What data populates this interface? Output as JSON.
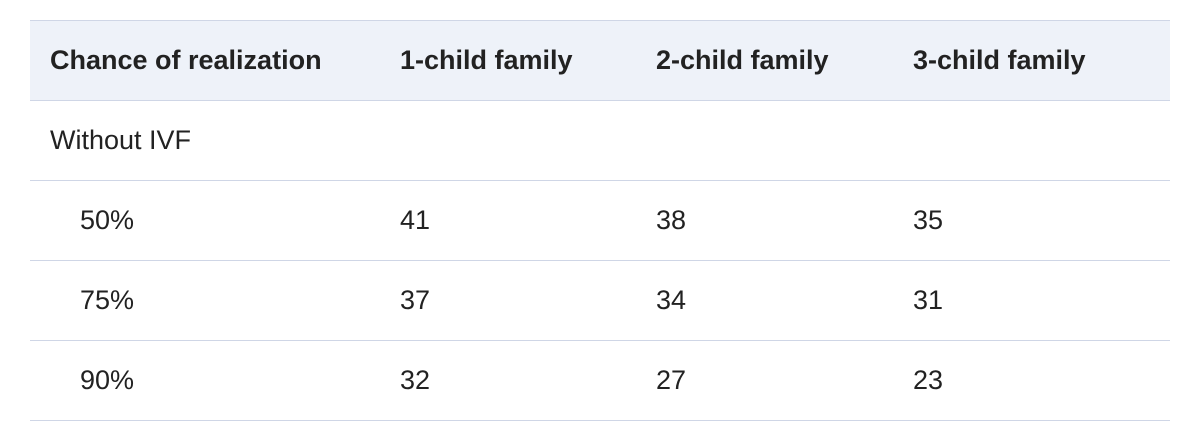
{
  "table": {
    "headers": [
      "Chance of realization",
      "1-child family",
      "2-child family",
      "3-child family"
    ],
    "section_label": "Without IVF",
    "rows": [
      {
        "label": "50%",
        "values": [
          "41",
          "38",
          "35"
        ]
      },
      {
        "label": "75%",
        "values": [
          "37",
          "34",
          "31"
        ]
      },
      {
        "label": "90%",
        "values": [
          "32",
          "27",
          "23"
        ]
      }
    ]
  }
}
